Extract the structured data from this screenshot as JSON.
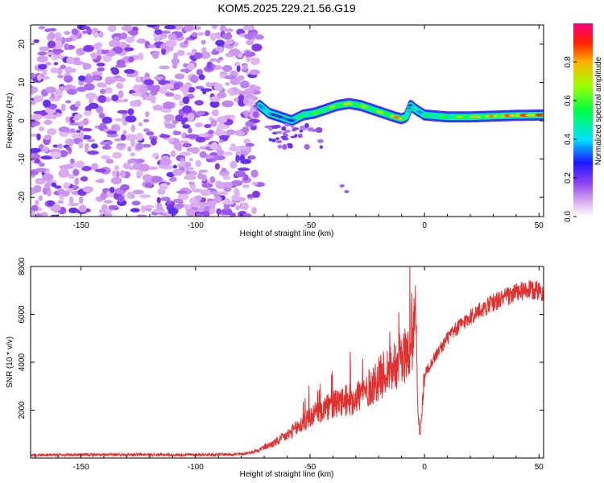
{
  "title": "KOM5.2025.229.21.56.G19",
  "colorbar": {
    "label": "Normalized spectral amplitude",
    "ticks": [
      "0.0",
      "0.2",
      "0.4",
      "0.6",
      "0.8"
    ]
  },
  "chart_data": [
    {
      "type": "heatmap",
      "title": "KOM5.2025.229.21.56.G19",
      "xlabel": "Height of straight line (km)",
      "ylabel": "Frequency (Hz)",
      "xlim": [
        -172,
        52
      ],
      "ylim": [
        -25,
        25
      ],
      "xticks": [
        -150,
        -100,
        -50,
        0,
        50
      ],
      "yticks": [
        -20,
        -10,
        0,
        10,
        20
      ],
      "colorbar_label": "Normalized spectral amplitude",
      "colorbar_range": [
        0,
        1
      ],
      "description_segments": [
        {
          "x_range": [
            -172,
            -72
          ],
          "pattern": "noise",
          "amplitude": [
            0.05,
            0.2
          ]
        },
        {
          "x_range": [
            -72,
            52
          ],
          "pattern": "ridge",
          "amplitude": [
            0.4,
            1.0
          ]
        }
      ],
      "ridge": {
        "x": [
          -72,
          -68,
          -63,
          -58,
          -53,
          -48,
          -43,
          -38,
          -33,
          -28,
          -23,
          -18,
          -13,
          -10,
          -8,
          -6,
          -4,
          0,
          10,
          20,
          30,
          40,
          52
        ],
        "y": [
          4,
          2,
          1,
          0,
          1.5,
          2,
          3,
          4,
          4.5,
          4,
          3,
          2,
          1,
          0.5,
          1,
          4,
          3,
          1.5,
          1,
          1,
          1.2,
          1.4,
          1.5
        ],
        "amplitude": [
          0.5,
          0.4,
          0.3,
          0.4,
          0.55,
          0.6,
          0.65,
          0.7,
          0.75,
          0.7,
          0.65,
          0.7,
          0.8,
          0.95,
          0.6,
          0.3,
          0.5,
          0.5,
          0.6,
          0.75,
          0.85,
          0.9,
          0.95
        ]
      }
    },
    {
      "type": "line",
      "xlabel": "Height of straight line (km)",
      "ylabel": "SNR (10 * v/v)",
      "xlim": [
        -172,
        52
      ],
      "ylim": [
        0,
        8000
      ],
      "xticks": [
        -150,
        -100,
        -50,
        0,
        50
      ],
      "yticks": [
        2000,
        4000,
        6000,
        8000
      ],
      "color": "#e03030",
      "series": [
        {
          "name": "SNR",
          "x": [
            -172,
            -160,
            -150,
            -140,
            -130,
            -120,
            -110,
            -100,
            -90,
            -80,
            -75,
            -70,
            -65,
            -60,
            -55,
            -50,
            -45,
            -40,
            -35,
            -30,
            -25,
            -20,
            -15,
            -10,
            -7,
            -5,
            -4,
            -3,
            -2,
            0,
            5,
            10,
            15,
            20,
            25,
            30,
            35,
            40,
            45,
            50,
            52
          ],
          "values": [
            120,
            130,
            140,
            130,
            150,
            140,
            130,
            140,
            150,
            160,
            250,
            450,
            650,
            950,
            1300,
            1700,
            2000,
            2200,
            2350,
            2550,
            2850,
            3300,
            3800,
            4100,
            4500,
            4700,
            7500,
            2000,
            1000,
            3500,
            4300,
            5000,
            5500,
            5900,
            6200,
            6500,
            6700,
            6900,
            7000,
            7000,
            6950
          ]
        }
      ]
    }
  ]
}
